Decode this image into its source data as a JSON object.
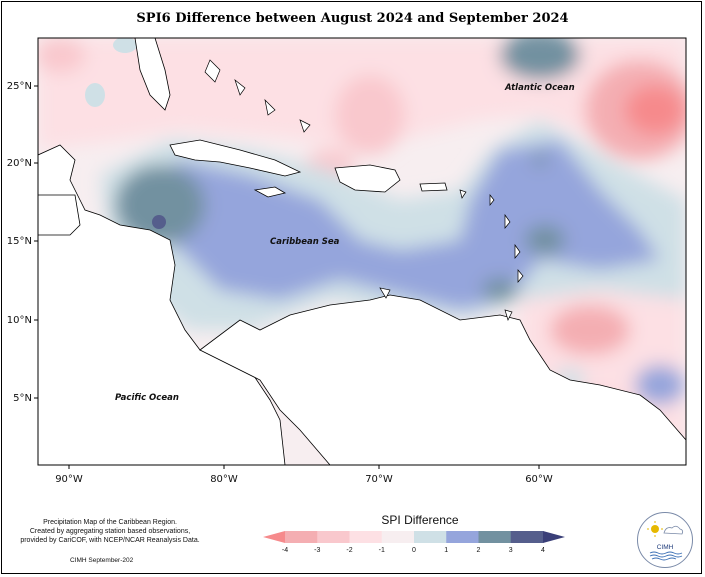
{
  "title": "SPI6 Difference between August 2024 and September 2024",
  "map": {
    "lat_labels": [
      "25°N",
      "20°N",
      "15°N",
      "10°N",
      "5°N"
    ],
    "lon_labels": [
      "90°W",
      "80°W",
      "70°W",
      "60°W"
    ],
    "places": {
      "atlantic": "Atlantic Ocean",
      "caribbean": "Caribbean Sea",
      "pacific": "Pacific Ocean"
    }
  },
  "legend": {
    "title": "SPI Difference",
    "ticks": [
      "-4",
      "-3",
      "-2",
      "-1",
      "0",
      "1",
      "2",
      "3",
      "4"
    ],
    "colors": [
      "#f68a8c",
      "#f4aeb2",
      "#f9c8cd",
      "#fde0e4",
      "#f7eef0",
      "#cfe0e6",
      "#95a5dc",
      "#7291a0",
      "#555e8c",
      "#3a3f78"
    ]
  },
  "footnote": {
    "line1": "Precipitation Map of the Caribbean Region.",
    "line2": "Created by aggregating station based observations,",
    "line3": "provided by CariCOF, with NCEP/NCAR Reanalysis Data."
  },
  "credit": "CIMH September-202",
  "logo": {
    "text": "CIMH",
    "sun_icon": "sun-icon",
    "cloud_icon": "cloud-icon",
    "wave_icon": "wave-icon"
  }
}
